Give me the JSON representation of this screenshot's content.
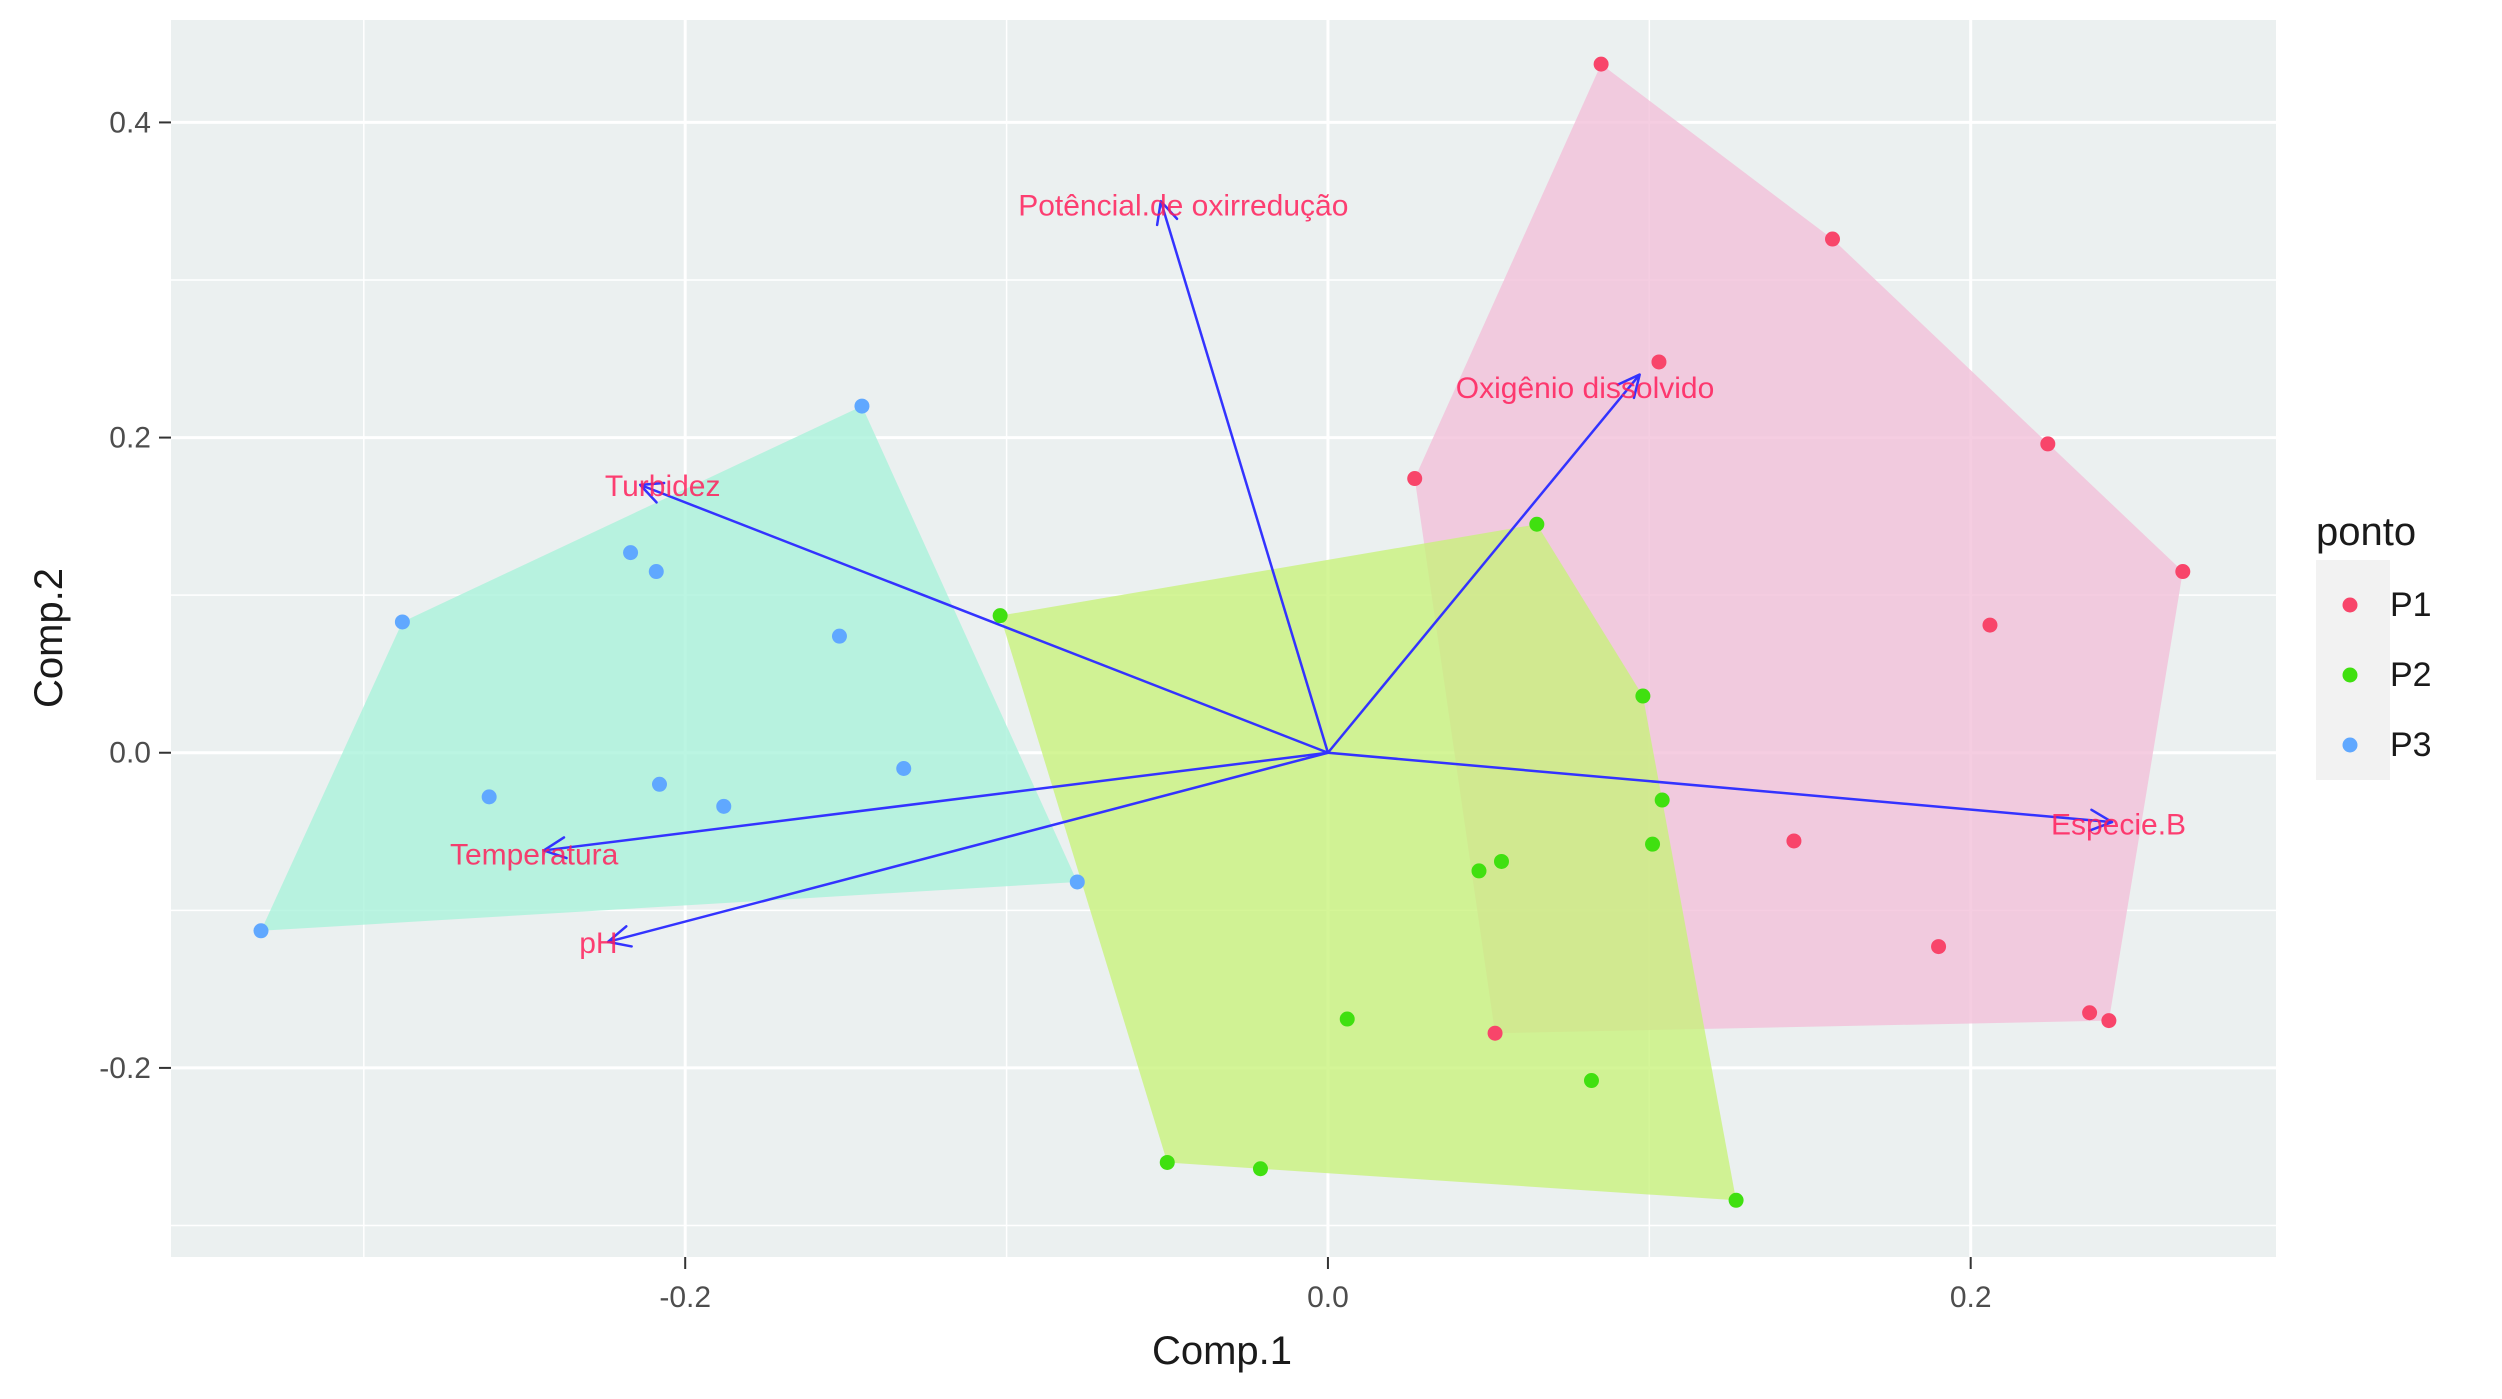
{
  "chart_data": {
    "type": "scatter",
    "subtype": "pca-biplot-with-convex-hulls",
    "title": "",
    "xlabel": "Comp.1",
    "ylabel": "Comp.2",
    "xlim": [
      -0.36,
      0.295
    ],
    "ylim": [
      -0.32,
      0.465
    ],
    "x_ticks": [
      -0.2,
      0.0,
      0.2
    ],
    "x_tick_labels": [
      "-0.2",
      "0.0",
      "0.2"
    ],
    "y_ticks": [
      -0.2,
      0.0,
      0.2,
      0.4
    ],
    "y_tick_labels": [
      "-0.2",
      "0.0",
      "0.2",
      "0.4"
    ],
    "grid": true,
    "legend": {
      "title": "ponto",
      "position": "right"
    },
    "series": [
      {
        "name": "P1",
        "color": "#F8766D",
        "point_color": "#F8456A",
        "hull_color": "#F2BFD9",
        "points": [
          {
            "x": 0.085,
            "y": 0.437
          },
          {
            "x": 0.157,
            "y": 0.326
          },
          {
            "x": 0.103,
            "y": 0.248
          },
          {
            "x": 0.027,
            "y": 0.174
          },
          {
            "x": 0.224,
            "y": 0.196
          },
          {
            "x": 0.266,
            "y": 0.115
          },
          {
            "x": 0.206,
            "y": 0.081
          },
          {
            "x": 0.145,
            "y": -0.056
          },
          {
            "x": 0.19,
            "y": -0.123
          },
          {
            "x": 0.237,
            "y": -0.165
          },
          {
            "x": 0.243,
            "y": -0.17
          },
          {
            "x": 0.052,
            "y": -0.178
          }
        ]
      },
      {
        "name": "P2",
        "color": "#00BA38",
        "point_color": "#40E010",
        "hull_color": "#C8F27A",
        "points": [
          {
            "x": -0.102,
            "y": 0.087
          },
          {
            "x": 0.065,
            "y": 0.145
          },
          {
            "x": 0.098,
            "y": 0.036
          },
          {
            "x": 0.104,
            "y": -0.03
          },
          {
            "x": 0.101,
            "y": -0.058
          },
          {
            "x": 0.054,
            "y": -0.069
          },
          {
            "x": 0.047,
            "y": -0.075
          },
          {
            "x": 0.006,
            "y": -0.169
          },
          {
            "x": 0.082,
            "y": -0.208
          },
          {
            "x": -0.05,
            "y": -0.26
          },
          {
            "x": -0.021,
            "y": -0.264
          },
          {
            "x": 0.127,
            "y": -0.284
          }
        ]
      },
      {
        "name": "P3",
        "color": "#619CFF",
        "point_color": "#60A8FF",
        "hull_color": "#A8F2DA",
        "points": [
          {
            "x": -0.145,
            "y": 0.22
          },
          {
            "x": -0.217,
            "y": 0.127
          },
          {
            "x": -0.209,
            "y": 0.115
          },
          {
            "x": -0.288,
            "y": 0.083
          },
          {
            "x": -0.152,
            "y": 0.074
          },
          {
            "x": -0.132,
            "y": -0.01
          },
          {
            "x": -0.208,
            "y": -0.02
          },
          {
            "x": -0.188,
            "y": -0.034
          },
          {
            "x": -0.261,
            "y": -0.028
          },
          {
            "x": -0.332,
            "y": -0.113
          },
          {
            "x": -0.078,
            "y": -0.082
          }
        ]
      }
    ],
    "loadings": [
      {
        "name": "Potêncial.de oxirredução",
        "x": -0.052,
        "y": 0.35,
        "label_x": -0.045,
        "label_y": 0.346
      },
      {
        "name": "Oxigênio dissolvido",
        "x": 0.097,
        "y": 0.24,
        "label_x": 0.08,
        "label_y": 0.23
      },
      {
        "name": "Turbidez",
        "x": -0.214,
        "y": 0.17,
        "label_x": -0.207,
        "label_y": 0.168
      },
      {
        "name": "Especie.B",
        "x": 0.244,
        "y": -0.044,
        "label_x": 0.246,
        "label_y": -0.047
      },
      {
        "name": "Temperatura",
        "x": -0.244,
        "y": -0.062,
        "label_x": -0.247,
        "label_y": -0.066
      },
      {
        "name": "pH",
        "x": -0.224,
        "y": -0.12,
        "label_x": -0.227,
        "label_y": -0.122
      }
    ],
    "arrow_color": "#3333FF",
    "loading_label_color": "#FF1F5B"
  }
}
